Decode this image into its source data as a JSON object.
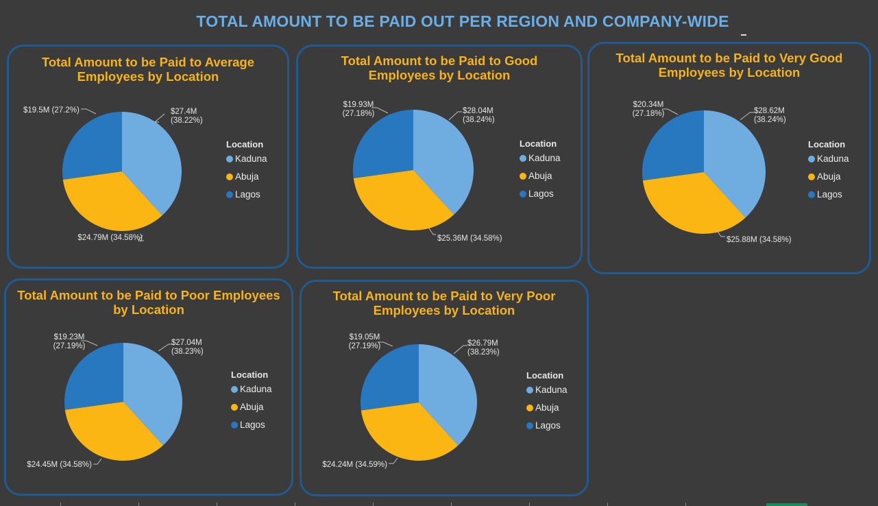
{
  "page_title": "TOTAL AMOUNT TO BE PAID OUT PER REGION AND COMPANY-WIDE",
  "colors": {
    "Kaduna": "#6fade0",
    "Abuja": "#fbb614",
    "Lagos": "#2878c0"
  },
  "chart_data": [
    {
      "type": "pie",
      "title": [
        "Total Amount to be Paid to Average",
        "Employees by Location"
      ],
      "legend_title": "Location",
      "categories": [
        "Kaduna",
        "Abuja",
        "Lagos"
      ],
      "values": [
        27.4,
        24.79,
        19.5
      ],
      "percent_labels": [
        "38.22%",
        "34.58%",
        "27.2%"
      ],
      "value_labels": [
        "$27.4M",
        "$24.79M",
        "$19.5M"
      ]
    },
    {
      "type": "pie",
      "title": [
        "Total Amount to be Paid to Good",
        "Employees by Location"
      ],
      "legend_title": "Location",
      "categories": [
        "Kaduna",
        "Abuja",
        "Lagos"
      ],
      "values": [
        28.04,
        25.36,
        19.93
      ],
      "percent_labels": [
        "38.24%",
        "34.58%",
        "27.18%"
      ],
      "value_labels": [
        "$28.04M",
        "$25.36M",
        "$19.93M"
      ]
    },
    {
      "type": "pie",
      "title": [
        "Total Amount to be Paid to Very Good",
        "Employees by Location"
      ],
      "legend_title": "Location",
      "categories": [
        "Kaduna",
        "Abuja",
        "Lagos"
      ],
      "values": [
        28.62,
        25.88,
        20.34
      ],
      "percent_labels": [
        "38.24%",
        "34.58%",
        "27.18%"
      ],
      "value_labels": [
        "$28.62M",
        "$25.88M",
        "$20.34M"
      ]
    },
    {
      "type": "pie",
      "title": [
        "Total Amount to be Paid to Poor Employees",
        "by Location"
      ],
      "legend_title": "Location",
      "categories": [
        "Kaduna",
        "Abuja",
        "Lagos"
      ],
      "values": [
        27.04,
        24.45,
        19.23
      ],
      "percent_labels": [
        "38.23%",
        "34.58%",
        "27.19%"
      ],
      "value_labels": [
        "$27.04M",
        "$24.45M",
        "$19.23M"
      ]
    },
    {
      "type": "pie",
      "title": [
        "Total Amount to be Paid to Very Poor",
        "Employees by Location"
      ],
      "legend_title": "Location",
      "categories": [
        "Kaduna",
        "Abuja",
        "Lagos"
      ],
      "values": [
        26.79,
        24.24,
        19.05
      ],
      "percent_labels": [
        "38.23%",
        "34.59%",
        "27.19%"
      ],
      "value_labels": [
        "$26.79M",
        "$24.24M",
        "$19.05M"
      ]
    }
  ]
}
